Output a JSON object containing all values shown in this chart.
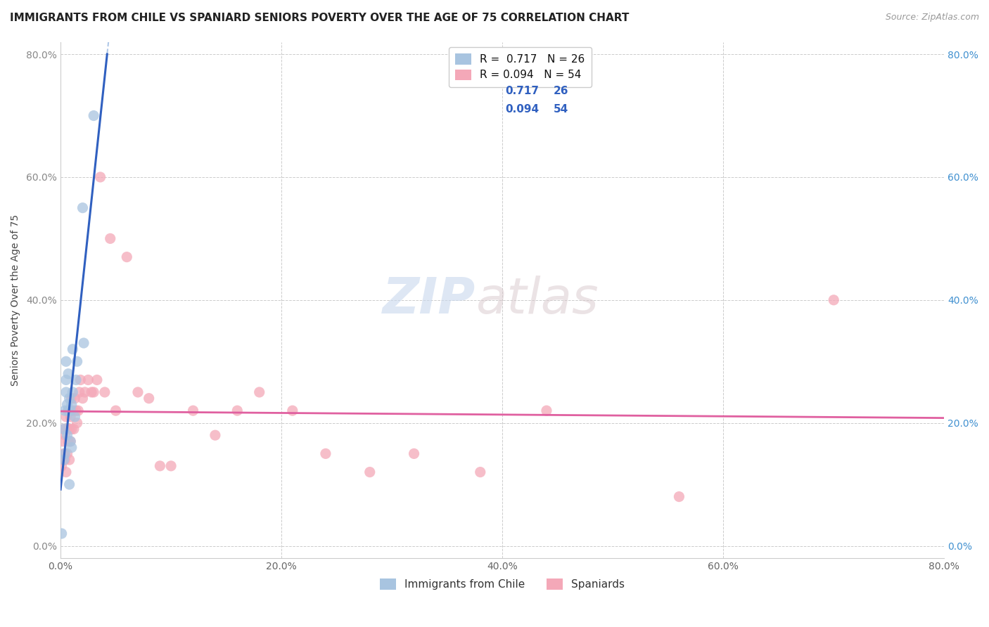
{
  "title": "IMMIGRANTS FROM CHILE VS SPANIARD SENIORS POVERTY OVER THE AGE OF 75 CORRELATION CHART",
  "source": "Source: ZipAtlas.com",
  "ylabel": "Seniors Poverty Over the Age of 75",
  "xlim": [
    0.0,
    0.8
  ],
  "ylim": [
    -0.02,
    0.82
  ],
  "xticks": [
    0.0,
    0.2,
    0.4,
    0.6,
    0.8
  ],
  "yticks": [
    0.0,
    0.2,
    0.4,
    0.6,
    0.8
  ],
  "watermark_zip": "ZIP",
  "watermark_atlas": "atlas",
  "legend_labels": [
    "Immigrants from Chile",
    "Spaniards"
  ],
  "R_chile": "0.717",
  "N_chile": "26",
  "R_spain": "0.094",
  "N_spain": "54",
  "color_chile": "#a8c4e0",
  "color_spain": "#f4a8b8",
  "line_color_chile": "#3060c0",
  "line_color_spain": "#e060a0",
  "line_color_dashed": "#b0c8e8",
  "chile_x": [
    0.001,
    0.003,
    0.003,
    0.004,
    0.004,
    0.005,
    0.005,
    0.005,
    0.006,
    0.006,
    0.007,
    0.007,
    0.008,
    0.008,
    0.009,
    0.009,
    0.01,
    0.01,
    0.011,
    0.011,
    0.013,
    0.014,
    0.015,
    0.02,
    0.021,
    0.03
  ],
  "chile_y": [
    0.02,
    0.14,
    0.19,
    0.22,
    0.15,
    0.27,
    0.25,
    0.3,
    0.18,
    0.23,
    0.28,
    0.22,
    0.1,
    0.24,
    0.17,
    0.22,
    0.16,
    0.23,
    0.25,
    0.32,
    0.21,
    0.27,
    0.3,
    0.55,
    0.33,
    0.7
  ],
  "spain_x": [
    0.001,
    0.002,
    0.002,
    0.003,
    0.003,
    0.004,
    0.004,
    0.005,
    0.005,
    0.006,
    0.006,
    0.007,
    0.007,
    0.008,
    0.008,
    0.009,
    0.009,
    0.01,
    0.01,
    0.011,
    0.012,
    0.013,
    0.014,
    0.015,
    0.016,
    0.017,
    0.018,
    0.02,
    0.022,
    0.025,
    0.028,
    0.03,
    0.033,
    0.036,
    0.04,
    0.045,
    0.05,
    0.06,
    0.07,
    0.08,
    0.09,
    0.1,
    0.12,
    0.14,
    0.16,
    0.18,
    0.21,
    0.24,
    0.28,
    0.32,
    0.38,
    0.44,
    0.56,
    0.7
  ],
  "spain_y": [
    0.13,
    0.14,
    0.17,
    0.15,
    0.19,
    0.14,
    0.18,
    0.12,
    0.21,
    0.15,
    0.19,
    0.17,
    0.22,
    0.14,
    0.19,
    0.17,
    0.21,
    0.19,
    0.24,
    0.22,
    0.19,
    0.24,
    0.22,
    0.2,
    0.22,
    0.25,
    0.27,
    0.24,
    0.25,
    0.27,
    0.25,
    0.25,
    0.27,
    0.6,
    0.25,
    0.5,
    0.22,
    0.47,
    0.25,
    0.24,
    0.13,
    0.13,
    0.22,
    0.18,
    0.22,
    0.25,
    0.22,
    0.15,
    0.12,
    0.15,
    0.12,
    0.22,
    0.08,
    0.4
  ],
  "figsize": [
    14.06,
    8.92
  ],
  "dpi": 100,
  "background_color": "#ffffff",
  "right_axis_color": "#4090d0",
  "title_fontsize": 11,
  "axis_label_fontsize": 10,
  "tick_fontsize": 10,
  "legend_fontsize": 11,
  "scatter_size": 120,
  "scatter_alpha": 0.75
}
